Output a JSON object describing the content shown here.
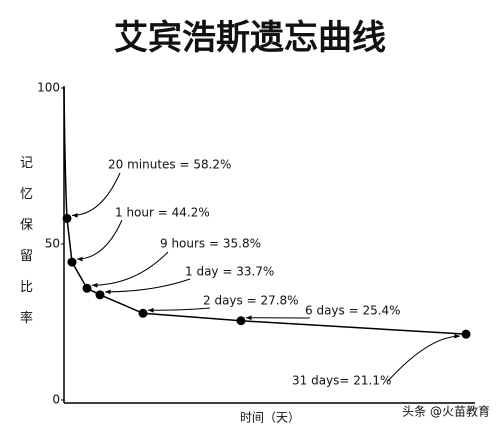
{
  "chart_data": {
    "type": "line",
    "title": "艾宾浩斯遗忘曲线",
    "y_label": "记忆保留比率",
    "x_label": "时间（天）",
    "watermark": "头条 @火苗教育",
    "categories": [
      null,
      null,
      null,
      null,
      null,
      null,
      null
    ],
    "values": [
      58.2,
      44.2,
      35.8,
      33.7,
      27.8,
      25.4,
      21.1
    ],
    "value_labels": [
      "20 minutes = 58.2%",
      "1 hour = 44.2%",
      "9 hours = 35.8%",
      "1 day = 33.7%",
      "2 days = 27.8%",
      "6 days = 25.4%",
      "31 days= 21.1%"
    ],
    "color": "#000000",
    "ylim": [
      0,
      100
    ],
    "yticks": [
      0,
      50,
      100
    ],
    "grid": false
  }
}
